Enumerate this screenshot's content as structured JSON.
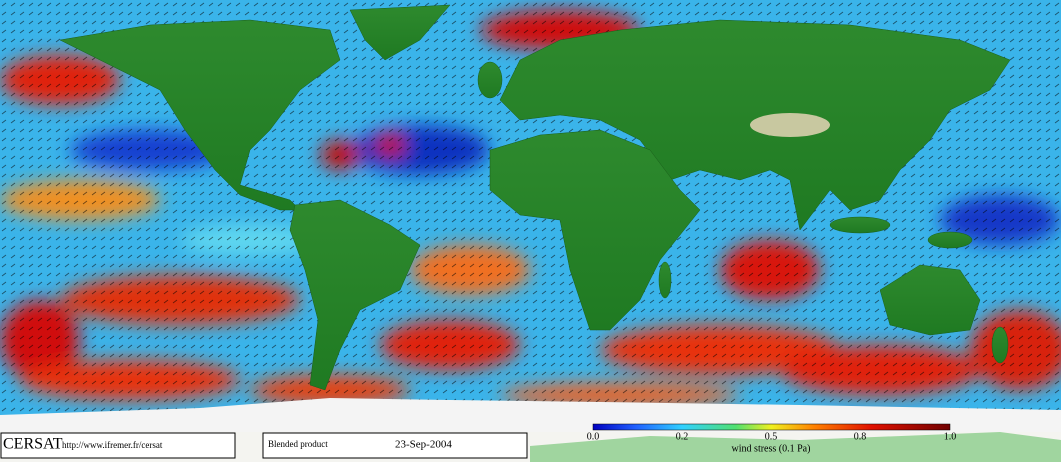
{
  "footer": {
    "logo": "CERSAT",
    "url": "http://www.ifremer.fr/cersat",
    "product": "Blended product",
    "date": "23-Sep-2004"
  },
  "legend": {
    "title": "wind stress (0.1 Pa)",
    "ticks": [
      "0.0",
      "0.2",
      "0.5",
      "0.8",
      "1.0"
    ]
  }
}
